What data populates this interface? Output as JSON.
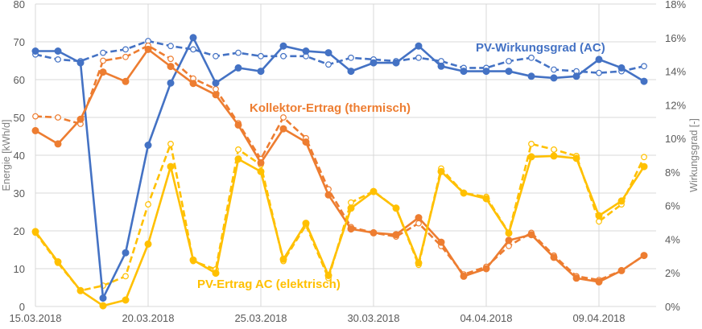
{
  "chart_data": {
    "type": "line",
    "title": "",
    "ylabel": "Energie [kWh/d]",
    "y2label": "Wirkungsgrad [-]",
    "ylim": [
      0,
      80
    ],
    "y2lim": [
      0,
      18
    ],
    "yticks": [
      "0",
      "10",
      "20",
      "30",
      "40",
      "50",
      "60",
      "70",
      "80"
    ],
    "y2ticks": [
      "0%",
      "2%",
      "4%",
      "6%",
      "8%",
      "10%",
      "12%",
      "14%",
      "16%",
      "18%"
    ],
    "xtick_labels": [
      "15.03.2018",
      "20.03.2018",
      "25.03.2018",
      "30.03.2018",
      "04.04.2018",
      "09.04.2018"
    ],
    "grid": true,
    "x": [
      "15.03.2018",
      "16.03.2018",
      "17.03.2018",
      "18.03.2018",
      "19.03.2018",
      "20.03.2018",
      "21.03.2018",
      "22.03.2018",
      "23.03.2018",
      "24.03.2018",
      "25.03.2018",
      "26.03.2018",
      "27.03.2018",
      "28.03.2018",
      "29.03.2018",
      "30.03.2018",
      "31.03.2018",
      "01.04.2018",
      "02.04.2018",
      "03.04.2018",
      "04.04.2018",
      "05.04.2018",
      "06.04.2018",
      "07.04.2018",
      "08.04.2018",
      "09.04.2018",
      "10.04.2018",
      "11.04.2018"
    ],
    "annotations": [
      {
        "text": "PV-Wirkungsgrad (AC)",
        "color": "#4472C4"
      },
      {
        "text": "Kollektor-Ertrag (thermisch)",
        "color": "#ED7D31"
      },
      {
        "text": "PV-Ertrag AC (elektrisch)",
        "color": "#FFC000"
      }
    ],
    "series": [
      {
        "group": "PV-Wirkungsgrad (AC)",
        "axis": "right",
        "unit": "%",
        "style": "solid",
        "color": "#4472C4",
        "values": [
          15.2,
          15.2,
          14.5,
          0.5,
          3.2,
          9.6,
          13.3,
          16.0,
          13.3,
          14.2,
          14.0,
          15.5,
          15.2,
          15.1,
          14.0,
          14.5,
          14.5,
          15.5,
          14.3,
          14.0,
          14.0,
          14.0,
          13.7,
          13.6,
          13.7,
          14.7,
          14.2,
          13.4
        ]
      },
      {
        "group": "PV-Wirkungsgrad (AC)",
        "axis": "right",
        "unit": "%",
        "style": "dashed",
        "color": "#4472C4",
        "values": [
          15.0,
          14.7,
          14.6,
          15.1,
          15.3,
          15.8,
          15.5,
          15.3,
          14.9,
          15.1,
          14.9,
          14.9,
          14.9,
          14.4,
          14.8,
          14.7,
          14.6,
          14.8,
          14.6,
          14.2,
          14.2,
          14.6,
          14.8,
          14.1,
          14.0,
          13.9,
          14.0,
          14.3
        ]
      },
      {
        "group": "Kollektor-Ertrag (thermisch)",
        "axis": "left",
        "unit": "kWh/d",
        "style": "solid",
        "color": "#ED7D31",
        "values": [
          46.5,
          43,
          49.5,
          62,
          59.5,
          68,
          63.5,
          59,
          56,
          48,
          38,
          47,
          43.5,
          29.5,
          20.5,
          19.5,
          19,
          23.5,
          17,
          8,
          10,
          17.5,
          19,
          13,
          7.5,
          6.5,
          9.5,
          13.5
        ]
      },
      {
        "group": "Kollektor-Ertrag (thermisch)",
        "axis": "left",
        "unit": "kWh/d",
        "style": "dashed",
        "color": "#ED7D31",
        "values": [
          50.3,
          50,
          48.3,
          65,
          66,
          69,
          65.5,
          60.3,
          57.5,
          48.5,
          39,
          50,
          44.5,
          31,
          21,
          19.5,
          18.5,
          22,
          16,
          8.5,
          10.5,
          16,
          19.5,
          13.5,
          8,
          7,
          9.5,
          13.5
        ]
      },
      {
        "group": "PV-Ertrag AC (elektrisch)",
        "axis": "left",
        "unit": "kWh/d",
        "style": "solid",
        "color": "#FFC000",
        "values": [
          19.8,
          11.8,
          4.2,
          0.2,
          1.7,
          16.5,
          37,
          12.3,
          8.8,
          39,
          35.7,
          12.5,
          22,
          8.2,
          26,
          30.4,
          26,
          11.5,
          35.7,
          30,
          28.5,
          19.4,
          39.6,
          39.8,
          39.2,
          24,
          27.9,
          37
        ]
      },
      {
        "group": "PV-Ertrag AC (elektrisch)",
        "axis": "left",
        "unit": "kWh/d",
        "style": "dashed",
        "color": "#FFC000",
        "values": [
          19.5,
          11.5,
          4.2,
          5.5,
          8,
          27,
          43,
          12,
          9.8,
          41.5,
          37.5,
          12,
          21.5,
          7.5,
          27.5,
          30.5,
          26,
          11,
          36.5,
          30,
          29,
          19.5,
          43,
          41.5,
          39.8,
          22.5,
          27,
          39.5
        ]
      }
    ]
  }
}
